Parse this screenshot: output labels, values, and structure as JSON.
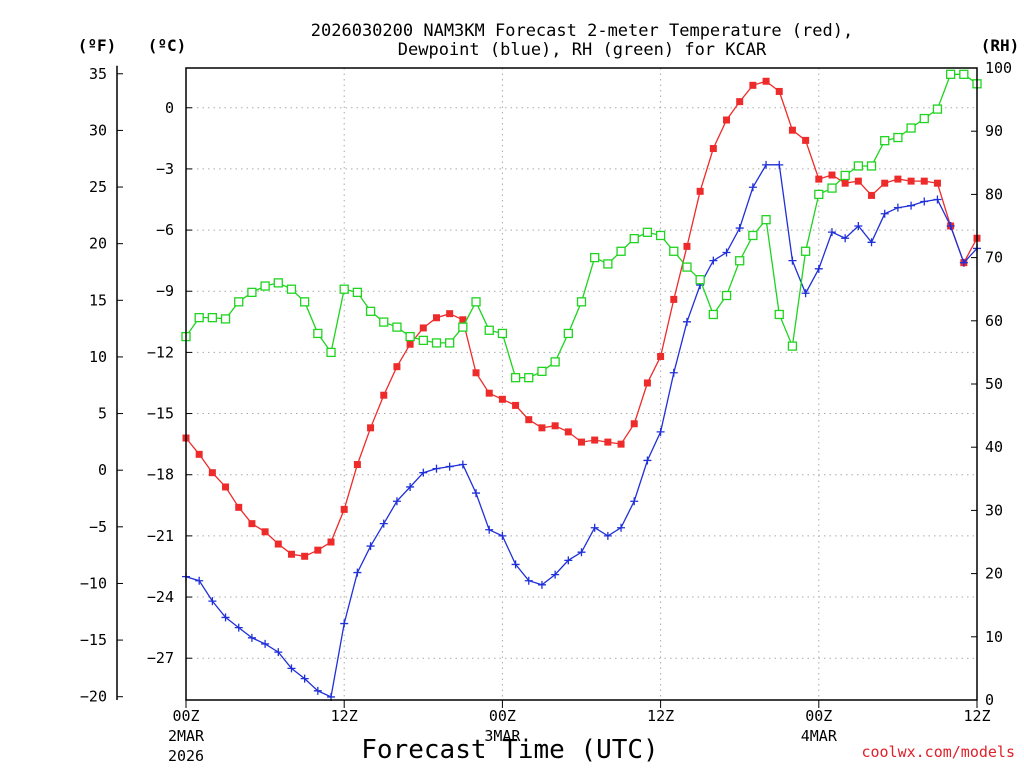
{
  "colors": {
    "temp": "#ee2b2b",
    "dew": "#2030d8",
    "rh": "#1fd41f",
    "grid": "#aaaaaa",
    "axis": "#000000",
    "credit": "#e0202a"
  },
  "chart_data": {
    "type": "line",
    "title_line1": "2026030200 NAM3KM Forecast 2-meter Temperature (red),",
    "title_line2": "Dewpoint (blue), RH (green) for KCAR",
    "xlabel": "Forecast Time (UTC)",
    "credit": "coolwx.com/models",
    "x_range_hours": [
      0,
      60
    ],
    "x_ticks": [
      {
        "hour": 0,
        "label": "00Z",
        "date": "2MAR",
        "year": "2026"
      },
      {
        "hour": 12,
        "label": "12Z"
      },
      {
        "hour": 24,
        "label": "00Z",
        "date": "3MAR"
      },
      {
        "hour": 36,
        "label": "12Z"
      },
      {
        "hour": 48,
        "label": "00Z",
        "date": "4MAR"
      },
      {
        "hour": 60,
        "label": "12Z"
      }
    ],
    "left_units_f": "(ºF)",
    "left_units_c": "(ºC)",
    "right_units": "(RH)",
    "y_range_c": [
      -29.05,
      1.95
    ],
    "ticks_c": [
      "0",
      "−3",
      "−6",
      "−9",
      "−12",
      "−15",
      "−18",
      "−21",
      "−24",
      "−27"
    ],
    "ticks_c_values": [
      0,
      -3,
      -6,
      -9,
      -12,
      -15,
      -18,
      -21,
      -24,
      -27
    ],
    "ticks_f": [
      "35",
      "30",
      "25",
      "20",
      "15",
      "10",
      "5",
      "0",
      "−5",
      "−10",
      "−15",
      "−20"
    ],
    "ticks_f_values": [
      35,
      30,
      25,
      20,
      15,
      10,
      5,
      0,
      -5,
      -10,
      -15,
      -20
    ],
    "y_range_rh": [
      0,
      100
    ],
    "ticks_rh": [
      "100",
      "90",
      "80",
      "70",
      "60",
      "50",
      "40",
      "30",
      "20",
      "10",
      "0"
    ],
    "ticks_rh_values": [
      100,
      90,
      80,
      70,
      60,
      50,
      40,
      30,
      20,
      10,
      0
    ],
    "series": [
      {
        "name": "Temperature",
        "unit": "C",
        "color": "#ee2b2b",
        "marker": "filled-square",
        "x": [
          0,
          1,
          2,
          3,
          4,
          5,
          6,
          7,
          8,
          9,
          10,
          11,
          12,
          13,
          14,
          15,
          16,
          17,
          18,
          19,
          20,
          21,
          22,
          23,
          24,
          25,
          26,
          27,
          28,
          29,
          30,
          31,
          32,
          33,
          34,
          35,
          36,
          37,
          38,
          39,
          40,
          41,
          42,
          43,
          44,
          45,
          46,
          47,
          48,
          49,
          50,
          51,
          52,
          53,
          54,
          55,
          56,
          57,
          58,
          59,
          60
        ],
        "values": [
          -16.2,
          -17.0,
          -17.9,
          -18.6,
          -19.6,
          -20.4,
          -20.8,
          -21.4,
          -21.9,
          -22.0,
          -21.7,
          -21.3,
          -19.7,
          -17.5,
          -15.7,
          -14.1,
          -12.7,
          -11.6,
          -10.8,
          -10.3,
          -10.1,
          -10.4,
          -13.0,
          -14.0,
          -14.3,
          -14.6,
          -15.3,
          -15.7,
          -15.6,
          -15.9,
          -16.4,
          -16.3,
          -16.4,
          -16.5,
          -15.5,
          -13.5,
          -12.2,
          -9.4,
          -6.8,
          -4.1,
          -2.0,
          -0.6,
          0.3,
          1.1,
          1.3,
          0.8,
          -1.1,
          -1.6,
          -3.5,
          -3.3,
          -3.7,
          -3.6,
          -4.3,
          -3.7,
          -3.5,
          -3.6,
          -3.6,
          -3.7,
          -5.8,
          -7.6,
          -6.4
        ]
      },
      {
        "name": "Dewpoint",
        "unit": "C",
        "color": "#2030d8",
        "marker": "plus",
        "x": [
          0,
          1,
          2,
          3,
          4,
          5,
          6,
          7,
          8,
          9,
          10,
          11,
          12,
          13,
          14,
          15,
          16,
          17,
          18,
          19,
          20,
          21,
          22,
          23,
          24,
          25,
          26,
          27,
          28,
          29,
          30,
          31,
          32,
          33,
          34,
          35,
          36,
          37,
          38,
          39,
          40,
          41,
          42,
          43,
          44,
          45,
          46,
          47,
          48,
          49,
          50,
          51,
          52,
          53,
          54,
          55,
          56,
          57,
          58,
          59,
          60
        ],
        "values": [
          -23.0,
          -23.2,
          -24.2,
          -25.0,
          -25.5,
          -26.0,
          -26.3,
          -26.7,
          -27.5,
          -28.0,
          -28.6,
          -28.9,
          -25.3,
          -22.8,
          -21.5,
          -20.4,
          -19.3,
          -18.6,
          -17.9,
          -17.7,
          -17.6,
          -17.5,
          -18.9,
          -20.7,
          -21.0,
          -22.4,
          -23.2,
          -23.4,
          -22.9,
          -22.2,
          -21.8,
          -20.6,
          -21.0,
          -20.6,
          -19.3,
          -17.3,
          -15.9,
          -13.0,
          -10.5,
          -8.7,
          -7.5,
          -7.1,
          -5.9,
          -3.9,
          -2.8,
          -2.8,
          -7.5,
          -9.1,
          -7.9,
          -6.1,
          -6.4,
          -5.8,
          -6.6,
          -5.2,
          -4.9,
          -4.8,
          -4.6,
          -4.5,
          -5.8,
          -7.6,
          -6.9
        ]
      },
      {
        "name": "RH",
        "unit": "%",
        "color": "#1fd41f",
        "marker": "open-square",
        "x": [
          0,
          1,
          2,
          3,
          4,
          5,
          6,
          7,
          8,
          9,
          10,
          11,
          12,
          13,
          14,
          15,
          16,
          17,
          18,
          19,
          20,
          21,
          22,
          23,
          24,
          25,
          26,
          27,
          28,
          29,
          30,
          31,
          32,
          33,
          34,
          35,
          36,
          37,
          38,
          39,
          40,
          41,
          42,
          43,
          44,
          45,
          46,
          47,
          48,
          49,
          50,
          51,
          52,
          53,
          54,
          55,
          56,
          57,
          58,
          59,
          60
        ],
        "values": [
          57.5,
          60.5,
          60.5,
          60.3,
          63.0,
          64.5,
          65.5,
          66.0,
          65.0,
          63.0,
          58.0,
          55.0,
          65.0,
          64.5,
          61.5,
          59.8,
          59.0,
          57.5,
          56.9,
          56.5,
          56.5,
          59.0,
          63.0,
          58.5,
          58.0,
          51.0,
          51.0,
          52.0,
          53.5,
          58.0,
          63.0,
          70.0,
          69.0,
          71.0,
          73.0,
          74.0,
          73.5,
          71.0,
          68.5,
          66.5,
          61.0,
          64.0,
          69.5,
          73.5,
          76.0,
          61.0,
          56.0,
          71.0,
          80.0,
          81.0,
          83.0,
          84.5,
          84.5,
          88.5,
          89.0,
          90.5,
          92.0,
          93.5,
          99.0,
          99.0,
          97.5
        ]
      }
    ]
  }
}
